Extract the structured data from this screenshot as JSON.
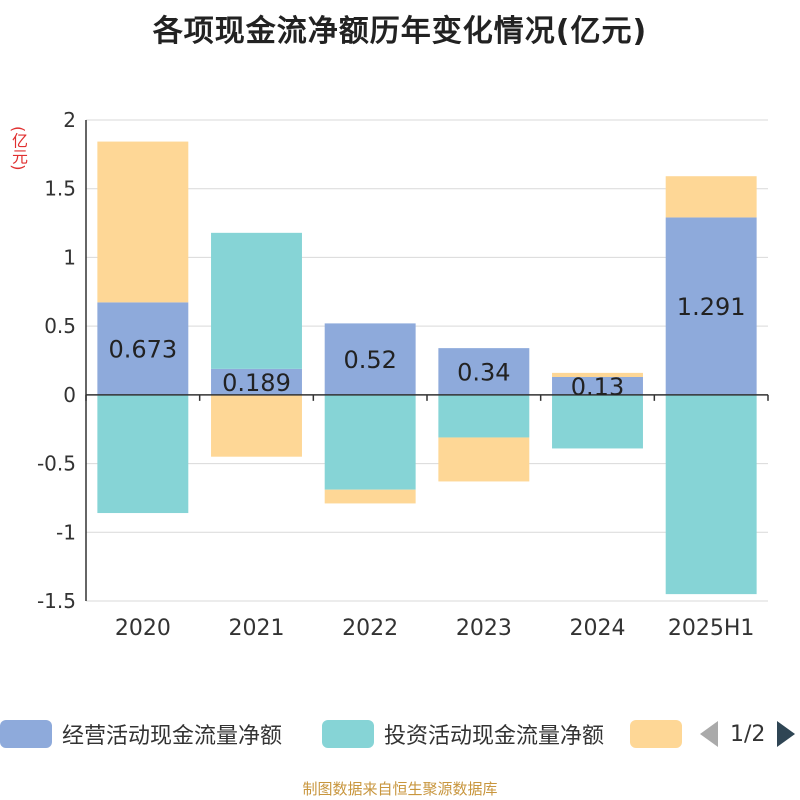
{
  "title": "各项现金流净额历年变化情况(亿元)",
  "unit_label": "(亿元)",
  "source": "制图数据来自恒生聚源数据库",
  "legend": {
    "items": [
      {
        "label": "经营活动现金流量净额",
        "color": "#8eaadb"
      },
      {
        "label": "投资活动现金流量净额",
        "color": "#86d4d6"
      },
      {
        "label": "",
        "color": "#fed796"
      }
    ],
    "page_text": "1/2"
  },
  "chart_data": {
    "type": "bar",
    "stacked": true,
    "categories": [
      "2020",
      "2021",
      "2022",
      "2023",
      "2024",
      "2025H1"
    ],
    "ylim": [
      -1.5,
      2
    ],
    "yticks": [
      2,
      1.5,
      1,
      0.5,
      0,
      -0.5,
      -1,
      -1.5
    ],
    "ytick_labels": [
      "2",
      "1.5",
      "1",
      "0.5",
      "0",
      "-0.5",
      "-1",
      "-1.5"
    ],
    "grid": true,
    "legend_position": "bottom",
    "series": [
      {
        "name": "经营活动现金流量净额",
        "color": "#8eaadb",
        "values": [
          0.673,
          0.189,
          0.52,
          0.34,
          0.13,
          1.291
        ],
        "labels": [
          "0.673",
          "0.189",
          "0.52",
          "0.34",
          "0.13",
          "1.291"
        ]
      },
      {
        "name": "投资活动现金流量净额",
        "color": "#86d4d6",
        "values": [
          -0.86,
          0.99,
          -0.69,
          -0.31,
          -0.39,
          -1.45
        ]
      },
      {
        "color": "#fed796",
        "values": [
          1.17,
          -0.45,
          -0.1,
          -0.32,
          0.03,
          0.3
        ]
      }
    ]
  }
}
